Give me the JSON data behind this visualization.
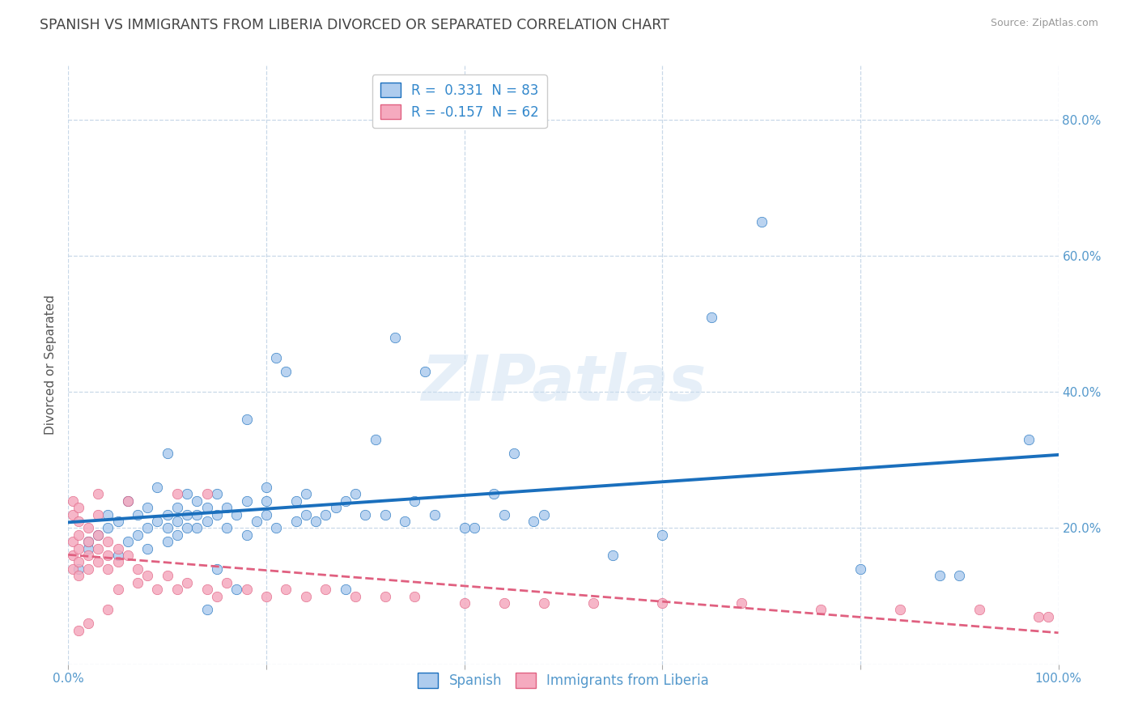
{
  "title": "SPANISH VS IMMIGRANTS FROM LIBERIA DIVORCED OR SEPARATED CORRELATION CHART",
  "source": "Source: ZipAtlas.com",
  "ylabel": "Divorced or Separated",
  "legend_label1": "Spanish",
  "legend_label2": "Immigrants from Liberia",
  "r1": 0.331,
  "n1": 83,
  "r2": -0.157,
  "n2": 62,
  "color_blue": "#aeccee",
  "color_pink": "#f5aabf",
  "line_blue": "#1a6fbd",
  "line_pink": "#e06080",
  "background": "#ffffff",
  "grid_color": "#c8d8e8",
  "blue_dots": [
    [
      0.01,
      0.14
    ],
    [
      0.02,
      0.17
    ],
    [
      0.02,
      0.18
    ],
    [
      0.03,
      0.19
    ],
    [
      0.04,
      0.2
    ],
    [
      0.04,
      0.22
    ],
    [
      0.05,
      0.16
    ],
    [
      0.05,
      0.21
    ],
    [
      0.06,
      0.18
    ],
    [
      0.06,
      0.24
    ],
    [
      0.07,
      0.19
    ],
    [
      0.07,
      0.22
    ],
    [
      0.08,
      0.17
    ],
    [
      0.08,
      0.2
    ],
    [
      0.08,
      0.23
    ],
    [
      0.09,
      0.21
    ],
    [
      0.09,
      0.26
    ],
    [
      0.1,
      0.18
    ],
    [
      0.1,
      0.2
    ],
    [
      0.1,
      0.22
    ],
    [
      0.1,
      0.31
    ],
    [
      0.11,
      0.19
    ],
    [
      0.11,
      0.21
    ],
    [
      0.11,
      0.23
    ],
    [
      0.12,
      0.2
    ],
    [
      0.12,
      0.22
    ],
    [
      0.12,
      0.25
    ],
    [
      0.13,
      0.2
    ],
    [
      0.13,
      0.22
    ],
    [
      0.13,
      0.24
    ],
    [
      0.14,
      0.21
    ],
    [
      0.14,
      0.23
    ],
    [
      0.14,
      0.08
    ],
    [
      0.15,
      0.14
    ],
    [
      0.15,
      0.22
    ],
    [
      0.15,
      0.25
    ],
    [
      0.16,
      0.2
    ],
    [
      0.16,
      0.23
    ],
    [
      0.17,
      0.11
    ],
    [
      0.17,
      0.22
    ],
    [
      0.18,
      0.19
    ],
    [
      0.18,
      0.24
    ],
    [
      0.18,
      0.36
    ],
    [
      0.19,
      0.21
    ],
    [
      0.2,
      0.22
    ],
    [
      0.2,
      0.24
    ],
    [
      0.2,
      0.26
    ],
    [
      0.21,
      0.2
    ],
    [
      0.21,
      0.45
    ],
    [
      0.22,
      0.43
    ],
    [
      0.23,
      0.21
    ],
    [
      0.23,
      0.24
    ],
    [
      0.24,
      0.22
    ],
    [
      0.24,
      0.25
    ],
    [
      0.25,
      0.21
    ],
    [
      0.26,
      0.22
    ],
    [
      0.27,
      0.23
    ],
    [
      0.28,
      0.11
    ],
    [
      0.28,
      0.24
    ],
    [
      0.29,
      0.25
    ],
    [
      0.3,
      0.22
    ],
    [
      0.31,
      0.33
    ],
    [
      0.32,
      0.22
    ],
    [
      0.33,
      0.48
    ],
    [
      0.34,
      0.21
    ],
    [
      0.35,
      0.24
    ],
    [
      0.36,
      0.43
    ],
    [
      0.37,
      0.22
    ],
    [
      0.4,
      0.2
    ],
    [
      0.41,
      0.2
    ],
    [
      0.43,
      0.25
    ],
    [
      0.44,
      0.22
    ],
    [
      0.45,
      0.31
    ],
    [
      0.47,
      0.21
    ],
    [
      0.48,
      0.22
    ],
    [
      0.55,
      0.16
    ],
    [
      0.6,
      0.19
    ],
    [
      0.65,
      0.51
    ],
    [
      0.7,
      0.65
    ],
    [
      0.8,
      0.14
    ],
    [
      0.88,
      0.13
    ],
    [
      0.9,
      0.13
    ],
    [
      0.97,
      0.33
    ]
  ],
  "pink_dots": [
    [
      0.005,
      0.14
    ],
    [
      0.005,
      0.16
    ],
    [
      0.005,
      0.18
    ],
    [
      0.005,
      0.22
    ],
    [
      0.005,
      0.24
    ],
    [
      0.01,
      0.13
    ],
    [
      0.01,
      0.15
    ],
    [
      0.01,
      0.17
    ],
    [
      0.01,
      0.19
    ],
    [
      0.01,
      0.21
    ],
    [
      0.01,
      0.23
    ],
    [
      0.01,
      0.05
    ],
    [
      0.02,
      0.14
    ],
    [
      0.02,
      0.16
    ],
    [
      0.02,
      0.18
    ],
    [
      0.02,
      0.2
    ],
    [
      0.02,
      0.06
    ],
    [
      0.03,
      0.15
    ],
    [
      0.03,
      0.17
    ],
    [
      0.03,
      0.19
    ],
    [
      0.03,
      0.22
    ],
    [
      0.03,
      0.25
    ],
    [
      0.04,
      0.14
    ],
    [
      0.04,
      0.16
    ],
    [
      0.04,
      0.18
    ],
    [
      0.04,
      0.08
    ],
    [
      0.05,
      0.15
    ],
    [
      0.05,
      0.17
    ],
    [
      0.05,
      0.11
    ],
    [
      0.06,
      0.16
    ],
    [
      0.06,
      0.24
    ],
    [
      0.07,
      0.14
    ],
    [
      0.07,
      0.12
    ],
    [
      0.08,
      0.13
    ],
    [
      0.09,
      0.11
    ],
    [
      0.1,
      0.13
    ],
    [
      0.11,
      0.11
    ],
    [
      0.11,
      0.25
    ],
    [
      0.12,
      0.12
    ],
    [
      0.14,
      0.11
    ],
    [
      0.14,
      0.25
    ],
    [
      0.15,
      0.1
    ],
    [
      0.16,
      0.12
    ],
    [
      0.18,
      0.11
    ],
    [
      0.2,
      0.1
    ],
    [
      0.22,
      0.11
    ],
    [
      0.24,
      0.1
    ],
    [
      0.26,
      0.11
    ],
    [
      0.29,
      0.1
    ],
    [
      0.32,
      0.1
    ],
    [
      0.35,
      0.1
    ],
    [
      0.4,
      0.09
    ],
    [
      0.44,
      0.09
    ],
    [
      0.48,
      0.09
    ],
    [
      0.53,
      0.09
    ],
    [
      0.6,
      0.09
    ],
    [
      0.68,
      0.09
    ],
    [
      0.76,
      0.08
    ],
    [
      0.84,
      0.08
    ],
    [
      0.92,
      0.08
    ],
    [
      0.98,
      0.07
    ],
    [
      0.99,
      0.07
    ]
  ],
  "watermark": "ZIPatlas",
  "xlim": [
    0.0,
    1.0
  ],
  "ylim": [
    0.0,
    0.88
  ]
}
